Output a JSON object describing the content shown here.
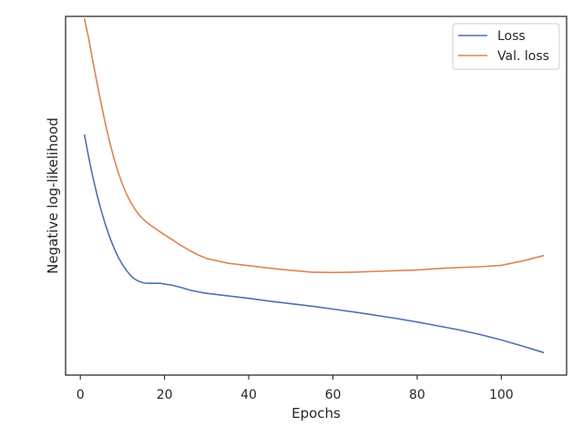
{
  "chart_data": {
    "type": "line",
    "title": "",
    "xlabel": "Epochs",
    "ylabel": "Negative log-likelihood",
    "xlim": [
      -3.5,
      115.5
    ],
    "ylim": [
      0,
      1
    ],
    "x_ticks": [
      0,
      20,
      40,
      60,
      80,
      100
    ],
    "y_ticks_shown": false,
    "grid": false,
    "legend": {
      "position": "top-right"
    },
    "series": [
      {
        "name": "Loss",
        "color": "#4c72b0",
        "points": [
          [
            1,
            0.669
          ],
          [
            2,
            0.607
          ],
          [
            3,
            0.551
          ],
          [
            4,
            0.501
          ],
          [
            5,
            0.457
          ],
          [
            6,
            0.418
          ],
          [
            7,
            0.384
          ],
          [
            8,
            0.354
          ],
          [
            9,
            0.329
          ],
          [
            10,
            0.308
          ],
          [
            11,
            0.291
          ],
          [
            12,
            0.277
          ],
          [
            13,
            0.267
          ],
          [
            14,
            0.261
          ],
          [
            15,
            0.257
          ],
          [
            16,
            0.256
          ],
          [
            17,
            0.256
          ],
          [
            18,
            0.256
          ],
          [
            19,
            0.256
          ],
          [
            20,
            0.254
          ],
          [
            22,
            0.25
          ],
          [
            24,
            0.244
          ],
          [
            26,
            0.237
          ],
          [
            28,
            0.232
          ],
          [
            30,
            0.228
          ],
          [
            35,
            0.221
          ],
          [
            40,
            0.214
          ],
          [
            45,
            0.206
          ],
          [
            50,
            0.199
          ],
          [
            55,
            0.192
          ],
          [
            60,
            0.184
          ],
          [
            65,
            0.176
          ],
          [
            70,
            0.167
          ],
          [
            75,
            0.158
          ],
          [
            80,
            0.148
          ],
          [
            85,
            0.137
          ],
          [
            90,
            0.126
          ],
          [
            95,
            0.113
          ],
          [
            100,
            0.098
          ],
          [
            105,
            0.081
          ],
          [
            110,
            0.063
          ]
        ]
      },
      {
        "name": "Val. loss",
        "color": "#dd8452",
        "points": [
          [
            1,
            0.992
          ],
          [
            2,
            0.938
          ],
          [
            3,
            0.873
          ],
          [
            4,
            0.812
          ],
          [
            5,
            0.754
          ],
          [
            6,
            0.698
          ],
          [
            7,
            0.649
          ],
          [
            8,
            0.604
          ],
          [
            9,
            0.565
          ],
          [
            10,
            0.532
          ],
          [
            11,
            0.504
          ],
          [
            12,
            0.481
          ],
          [
            13,
            0.462
          ],
          [
            14,
            0.446
          ],
          [
            15,
            0.434
          ],
          [
            16,
            0.424
          ],
          [
            17,
            0.415
          ],
          [
            18,
            0.407
          ],
          [
            19,
            0.399
          ],
          [
            20,
            0.391
          ],
          [
            22,
            0.376
          ],
          [
            24,
            0.361
          ],
          [
            26,
            0.347
          ],
          [
            28,
            0.335
          ],
          [
            30,
            0.325
          ],
          [
            35,
            0.312
          ],
          [
            40,
            0.305
          ],
          [
            45,
            0.298
          ],
          [
            50,
            0.292
          ],
          [
            55,
            0.287
          ],
          [
            60,
            0.286
          ],
          [
            65,
            0.287
          ],
          [
            70,
            0.289
          ],
          [
            75,
            0.291
          ],
          [
            80,
            0.293
          ],
          [
            85,
            0.297
          ],
          [
            90,
            0.3
          ],
          [
            95,
            0.302
          ],
          [
            100,
            0.306
          ],
          [
            105,
            0.318
          ],
          [
            110,
            0.333
          ]
        ]
      }
    ]
  }
}
